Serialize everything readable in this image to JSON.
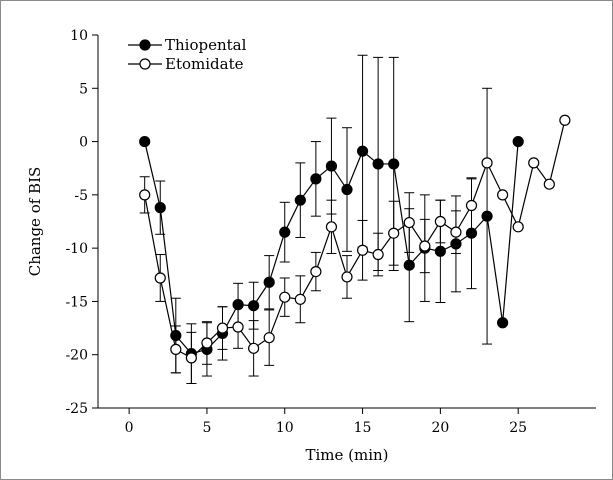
{
  "chart_data": {
    "type": "line",
    "xlabel": "Time (min)",
    "ylabel": "Change of BIS",
    "xlim": [
      -2,
      30
    ],
    "ylim": [
      -25,
      10
    ],
    "xticks": [
      0,
      5,
      10,
      15,
      20,
      25
    ],
    "yticks": [
      10,
      5,
      0,
      -5,
      -10,
      -15,
      -20,
      -25
    ],
    "legend": "top-left",
    "grid": false,
    "series": [
      {
        "name": "Thiopental",
        "marker": "filled-circle",
        "color": "#000000",
        "points": [
          {
            "x": 1,
            "y": 0
          },
          {
            "x": 2,
            "y": -6.2,
            "err": 2.5
          },
          {
            "x": 3,
            "y": -18.2,
            "err": 3.5
          },
          {
            "x": 4,
            "y": -19.9,
            "err": 2.8
          },
          {
            "x": 5,
            "y": -19.5,
            "err": 2.5
          },
          {
            "x": 6,
            "y": -18.0,
            "err": 2.5
          },
          {
            "x": 7,
            "y": -15.3,
            "err": 2.0
          },
          {
            "x": 8,
            "y": -15.4,
            "err": 2.2
          },
          {
            "x": 9,
            "y": -13.2,
            "err": 2.5
          },
          {
            "x": 10,
            "y": -8.5,
            "err": 2.8
          },
          {
            "x": 11,
            "y": -5.5,
            "err": 3.5
          },
          {
            "x": 12,
            "y": -3.5,
            "err": 3.5
          },
          {
            "x": 13,
            "y": -2.3,
            "err": 4.5
          },
          {
            "x": 14,
            "y": -4.5,
            "err": 5.8
          },
          {
            "x": 15,
            "y": -0.9,
            "err": 9.0
          },
          {
            "x": 16,
            "y": -2.1,
            "err": 10.0
          },
          {
            "x": 17,
            "y": -2.1,
            "err": 10.0
          },
          {
            "x": 18,
            "y": -11.6,
            "err": 5.3
          },
          {
            "x": 19,
            "y": -10.0,
            "err": 5.0
          },
          {
            "x": 20,
            "y": -10.3,
            "err": 4.8
          },
          {
            "x": 21,
            "y": -9.6,
            "err": 4.5
          },
          {
            "x": 22,
            "y": -8.6,
            "err": 5.2
          },
          {
            "x": 23,
            "y": -7.0,
            "err": 12.0
          },
          {
            "x": 24,
            "y": -17.0
          },
          {
            "x": 25,
            "y": 0
          }
        ]
      },
      {
        "name": "Etomidate",
        "marker": "open-circle",
        "color": "#000000",
        "points": [
          {
            "x": 1,
            "y": -5.0,
            "err": 1.7
          },
          {
            "x": 2,
            "y": -12.8,
            "err": 2.2
          },
          {
            "x": 3,
            "y": -19.5,
            "err": 2.2
          },
          {
            "x": 4,
            "y": -20.3,
            "err": 2.4
          },
          {
            "x": 5,
            "y": -18.9,
            "err": 2.0
          },
          {
            "x": 6,
            "y": -17.5,
            "err": 2.0
          },
          {
            "x": 7,
            "y": -17.4,
            "err": 2.0
          },
          {
            "x": 8,
            "y": -19.4,
            "err": 2.6
          },
          {
            "x": 9,
            "y": -18.4,
            "err": 2.6
          },
          {
            "x": 10,
            "y": -14.6,
            "err": 1.8
          },
          {
            "x": 11,
            "y": -14.8,
            "err": 2.2
          },
          {
            "x": 12,
            "y": -12.2,
            "err": 1.8
          },
          {
            "x": 13,
            "y": -8.0,
            "err": 2.5
          },
          {
            "x": 14,
            "y": -12.7,
            "err": 2.0
          },
          {
            "x": 15,
            "y": -10.2,
            "err": 2.8
          },
          {
            "x": 16,
            "y": -10.6,
            "err": 2.0
          },
          {
            "x": 17,
            "y": -8.6,
            "err": 3.0
          },
          {
            "x": 18,
            "y": -7.6,
            "err": 2.8
          },
          {
            "x": 19,
            "y": -9.8,
            "err": 2.5
          },
          {
            "x": 20,
            "y": -7.5,
            "err": 2.0
          },
          {
            "x": 21,
            "y": -8.5,
            "err": 2.0
          },
          {
            "x": 22,
            "y": -6.0,
            "err": 2.5
          },
          {
            "x": 23,
            "y": -2.0
          },
          {
            "x": 24,
            "y": -5.0
          },
          {
            "x": 25,
            "y": -8.0
          },
          {
            "x": 26,
            "y": -2.0
          },
          {
            "x": 27,
            "y": -4.0
          },
          {
            "x": 28,
            "y": 2.0
          }
        ]
      }
    ]
  }
}
